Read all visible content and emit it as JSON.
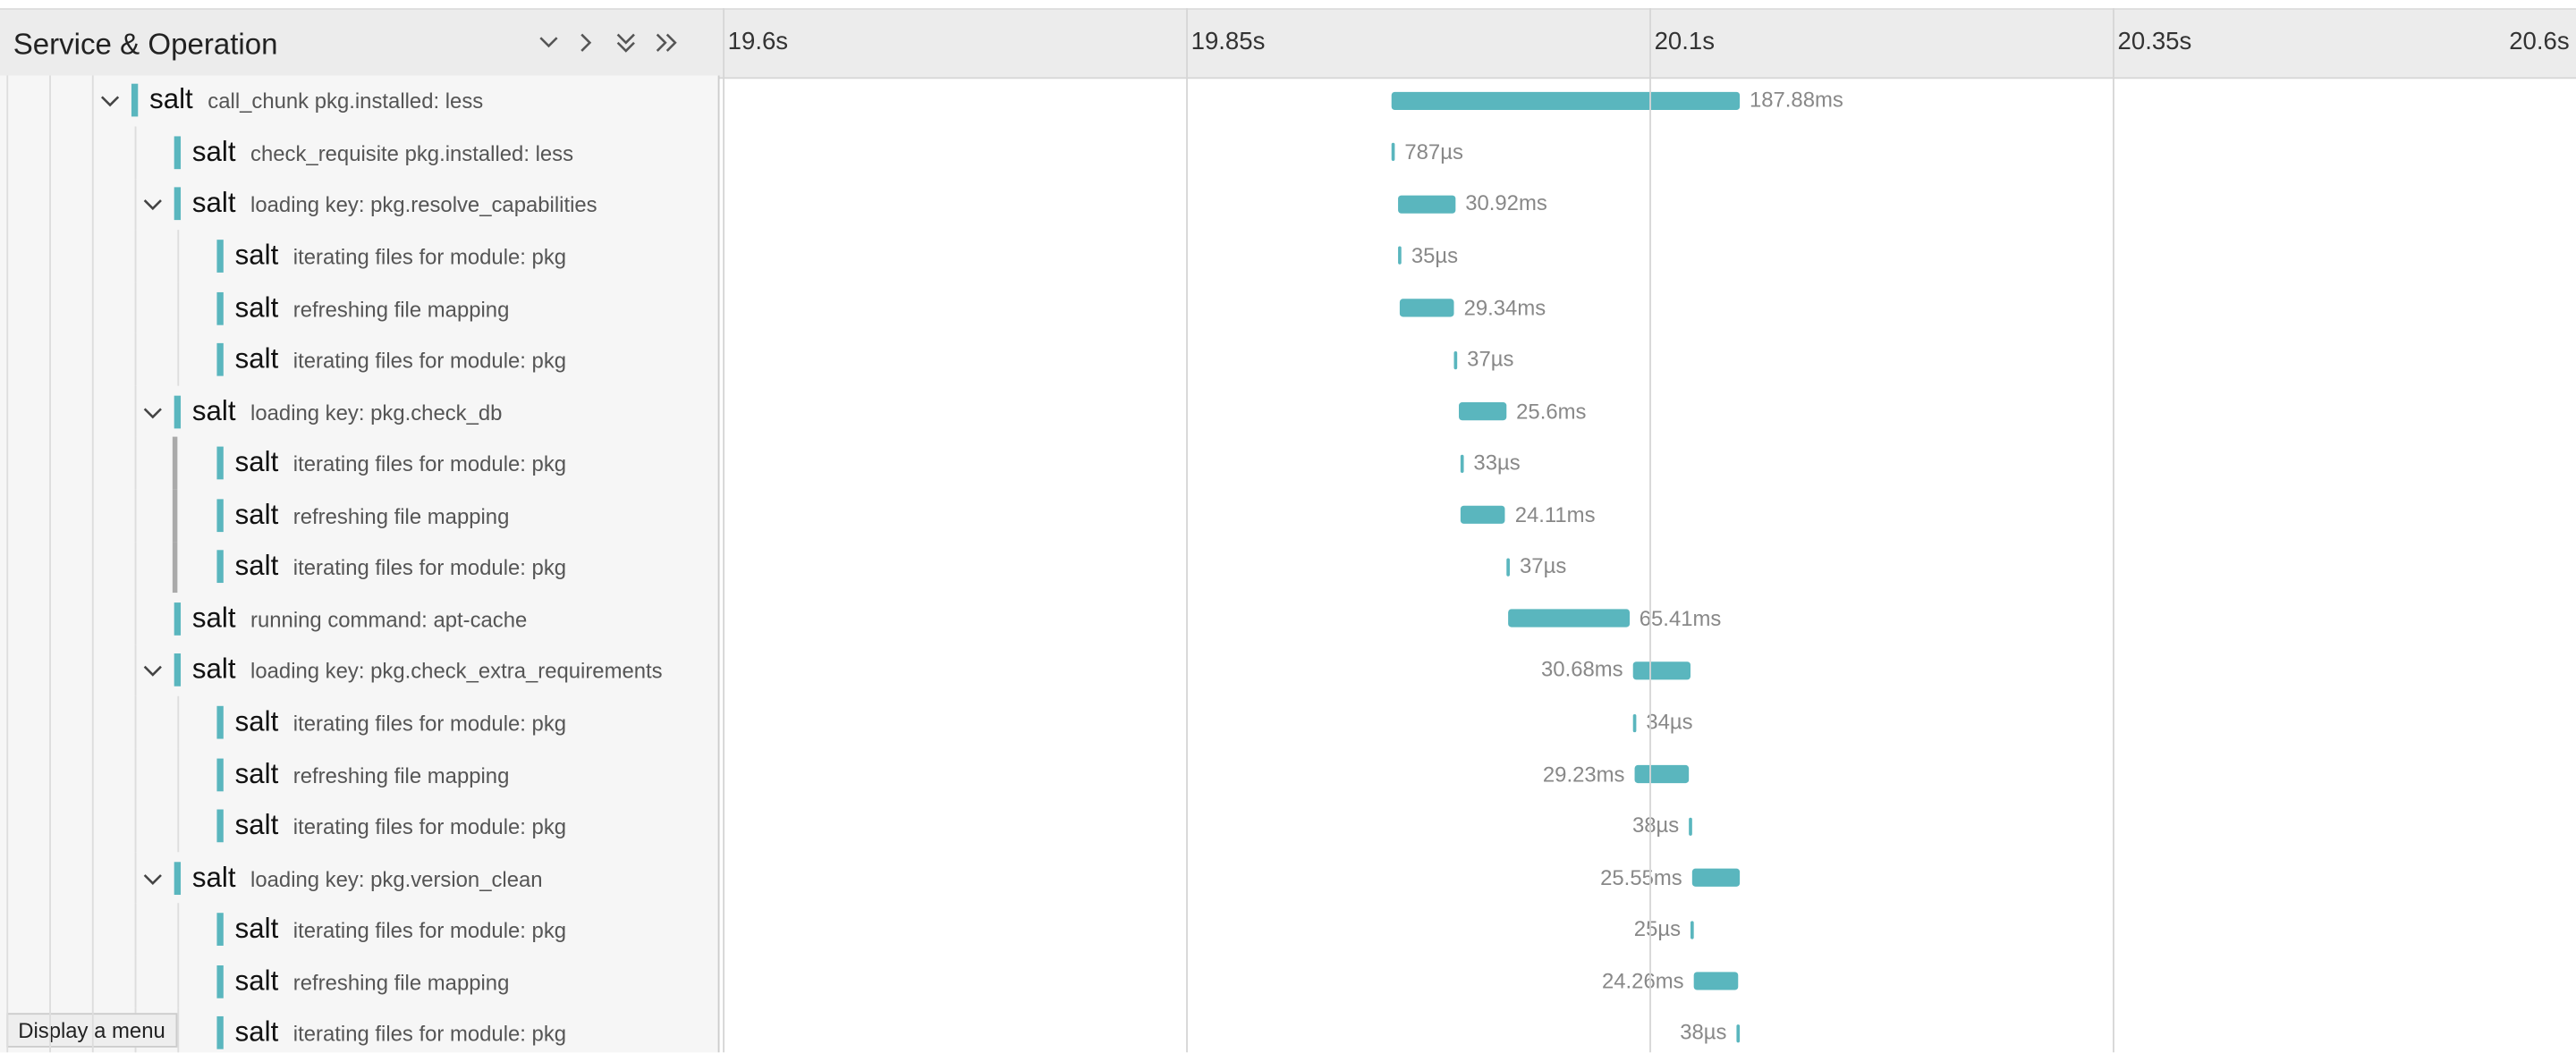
{
  "header": {
    "title": "Service & Operation"
  },
  "timeline": {
    "xlim": [
      19.6,
      20.6
    ],
    "ticks": [
      {
        "value": 19.6,
        "label": "19.6s"
      },
      {
        "value": 19.85,
        "label": "19.85s"
      },
      {
        "value": 20.1,
        "label": "20.1s"
      },
      {
        "value": 20.35,
        "label": "20.35s"
      },
      {
        "value": 20.6,
        "label": "20.6s"
      }
    ],
    "bar_color": "#5ab6be"
  },
  "rows": [
    {
      "depth": 0,
      "expanded": true,
      "service": "salt",
      "operation": "call_chunk pkg.installed: less",
      "start_s": 19.9608,
      "duration_ms": 187.88,
      "duration_label": "187.88ms"
    },
    {
      "depth": 1,
      "service": "salt",
      "operation": "check_requisite pkg.installed: less",
      "start_s": 19.9608,
      "duration_ms": 0.787,
      "duration_label": "787µs"
    },
    {
      "depth": 1,
      "expanded": true,
      "service": "salt",
      "operation": "loading key: pkg.resolve_capabilities",
      "start_s": 19.9644,
      "duration_ms": 30.92,
      "duration_label": "30.92ms"
    },
    {
      "depth": 2,
      "service": "salt",
      "operation": "iterating files for module: pkg",
      "start_s": 19.9644,
      "duration_ms": 0.035,
      "duration_label": "35µs"
    },
    {
      "depth": 2,
      "service": "salt",
      "operation": "refreshing file mapping",
      "start_s": 19.9652,
      "duration_ms": 29.34,
      "duration_label": "29.34ms"
    },
    {
      "depth": 2,
      "service": "salt",
      "operation": "iterating files for module: pkg",
      "start_s": 19.9945,
      "duration_ms": 0.037,
      "duration_label": "37µs"
    },
    {
      "depth": 1,
      "expanded": true,
      "service": "salt",
      "operation": "loading key: pkg.check_db",
      "start_s": 19.9972,
      "duration_ms": 25.6,
      "duration_label": "25.6ms"
    },
    {
      "depth": 2,
      "service": "salt",
      "operation": "iterating files for module: pkg",
      "start_s": 19.998,
      "duration_ms": 0.033,
      "duration_label": "33µs"
    },
    {
      "depth": 2,
      "service": "salt",
      "operation": "refreshing file mapping",
      "start_s": 19.998,
      "duration_ms": 24.11,
      "duration_label": "24.11ms"
    },
    {
      "depth": 2,
      "service": "salt",
      "operation": "iterating files for module: pkg",
      "start_s": 20.0229,
      "duration_ms": 0.037,
      "duration_label": "37µs"
    },
    {
      "depth": 1,
      "service": "salt",
      "operation": "running command: apt-cache",
      "start_s": 20.0238,
      "duration_ms": 65.41,
      "duration_label": "65.41ms"
    },
    {
      "depth": 1,
      "expanded": true,
      "service": "salt",
      "operation": "loading key: pkg.check_extra_requirements",
      "start_s": 20.0911,
      "duration_ms": 30.68,
      "duration_label": "30.68ms"
    },
    {
      "depth": 2,
      "service": "salt",
      "operation": "iterating files for module: pkg",
      "start_s": 20.0911,
      "duration_ms": 0.034,
      "duration_label": "34µs"
    },
    {
      "depth": 2,
      "service": "salt",
      "operation": "refreshing file mapping",
      "start_s": 20.092,
      "duration_ms": 29.23,
      "duration_label": "29.23ms"
    },
    {
      "depth": 2,
      "service": "salt",
      "operation": "iterating files for module: pkg",
      "start_s": 20.1213,
      "duration_ms": 0.038,
      "duration_label": "38µs"
    },
    {
      "depth": 1,
      "expanded": true,
      "service": "salt",
      "operation": "loading key: pkg.version_clean",
      "start_s": 20.123,
      "duration_ms": 25.55,
      "duration_label": "25.55ms"
    },
    {
      "depth": 2,
      "service": "salt",
      "operation": "iterating files for module: pkg",
      "start_s": 20.1222,
      "duration_ms": 0.025,
      "duration_label": "25µs"
    },
    {
      "depth": 2,
      "service": "salt",
      "operation": "refreshing file mapping",
      "start_s": 20.1239,
      "duration_ms": 24.26,
      "duration_label": "24.26ms"
    },
    {
      "depth": 2,
      "service": "salt",
      "operation": "iterating files for module: pkg",
      "start_s": 20.147,
      "duration_ms": 0.038,
      "duration_label": "38µs"
    }
  ],
  "tooltip": "Display a menu"
}
